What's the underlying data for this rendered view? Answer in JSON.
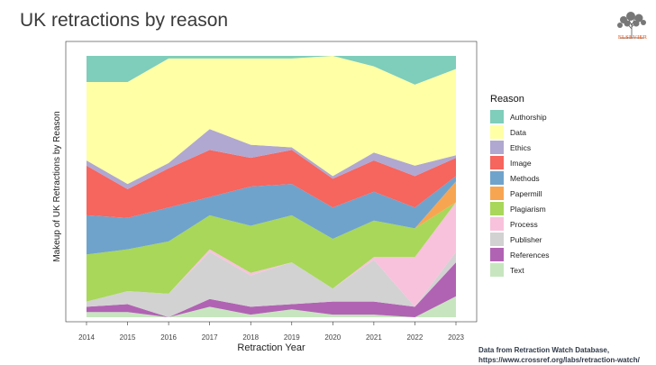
{
  "title": "UK retractions by reason",
  "logo": {
    "text": "ELSEVIER"
  },
  "source": {
    "line1": "Data from Retraction Watch Database,",
    "line2": "https://www.crossref.org/labs/retraction-watch/"
  },
  "colors": {
    "Authorship": "#7fcdbb",
    "Data": "#ffffa6",
    "Ethics": "#b0a8d0",
    "Image": "#f6655e",
    "Methods": "#6fa3cc",
    "Papermill": "#f8a551",
    "Plagiarism": "#a8d75a",
    "Process": "#f8c2dc",
    "Publisher": "#d2d2d2",
    "References": "#b163b3",
    "Text": "#c7e6bf"
  },
  "chart_data": {
    "type": "area",
    "stacked": true,
    "normalized": true,
    "xlabel": "Retraction Year",
    "ylabel": "Makeup of UK Retractions by Reason",
    "x": [
      2014,
      2015,
      2016,
      2017,
      2018,
      2019,
      2020,
      2021,
      2022,
      2023
    ],
    "ylim": [
      0,
      1
    ],
    "grid": false,
    "legend_title": "Reason",
    "legend_position": "right",
    "series": [
      {
        "name": "Text",
        "values": [
          0.02,
          0.02,
          0.0,
          0.04,
          0.01,
          0.03,
          0.01,
          0.01,
          0.0,
          0.08
        ]
      },
      {
        "name": "References",
        "values": [
          0.02,
          0.03,
          0.0,
          0.03,
          0.03,
          0.02,
          0.05,
          0.05,
          0.04,
          0.13
        ]
      },
      {
        "name": "Publisher",
        "values": [
          0.02,
          0.05,
          0.09,
          0.18,
          0.12,
          0.16,
          0.05,
          0.16,
          0.0,
          0.04
        ]
      },
      {
        "name": "Process",
        "values": [
          0.0,
          0.0,
          0.0,
          0.01,
          0.01,
          0.0,
          0.0,
          0.01,
          0.19,
          0.19
        ]
      },
      {
        "name": "Plagiarism",
        "values": [
          0.18,
          0.16,
          0.2,
          0.13,
          0.18,
          0.18,
          0.19,
          0.14,
          0.11,
          0.0
        ]
      },
      {
        "name": "Papermill",
        "values": [
          0.0,
          0.0,
          0.0,
          0.0,
          0.0,
          0.0,
          0.0,
          0.0,
          0.0,
          0.08
        ]
      },
      {
        "name": "Methods",
        "values": [
          0.15,
          0.12,
          0.13,
          0.07,
          0.15,
          0.12,
          0.12,
          0.11,
          0.08,
          0.02
        ]
      },
      {
        "name": "Image",
        "values": [
          0.19,
          0.11,
          0.15,
          0.18,
          0.11,
          0.13,
          0.11,
          0.12,
          0.12,
          0.07
        ]
      },
      {
        "name": "Ethics",
        "values": [
          0.02,
          0.02,
          0.02,
          0.08,
          0.05,
          0.01,
          0.01,
          0.03,
          0.04,
          0.01
        ]
      },
      {
        "name": "Data",
        "values": [
          0.3,
          0.39,
          0.4,
          0.27,
          0.33,
          0.34,
          0.46,
          0.33,
          0.31,
          0.33
        ]
      },
      {
        "name": "Authorship",
        "values": [
          0.1,
          0.1,
          0.01,
          0.01,
          0.01,
          0.01,
          0.0,
          0.04,
          0.11,
          0.05
        ]
      }
    ]
  }
}
